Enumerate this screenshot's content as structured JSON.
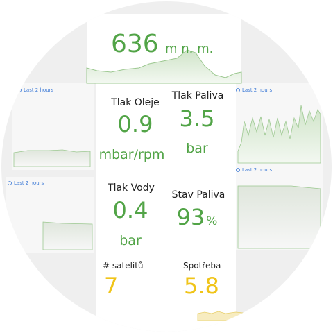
{
  "altitude": {
    "value": 636,
    "unit": "m n. m."
  },
  "history_panels": [
    {
      "range": "Last 2 hours"
    },
    {
      "range": "Last 2 hours"
    },
    {
      "range": "Last 2 hours"
    },
    {
      "range": "Last 2 hours"
    }
  ],
  "gauges": [
    {
      "label": "Tlak Oleje",
      "value": 0.9,
      "unit": "mbar/rpm"
    },
    {
      "label": "Tlak Paliva",
      "value": 3.5,
      "unit": "bar"
    },
    {
      "label": "Tlak Vody",
      "value": 0.4,
      "unit": "bar"
    },
    {
      "label": "Stav Paliva",
      "value": 93,
      "unit": "%"
    },
    {
      "label": "# satelitů",
      "value": 7
    },
    {
      "label": "Spotřeba",
      "value": 5.8
    }
  ]
}
